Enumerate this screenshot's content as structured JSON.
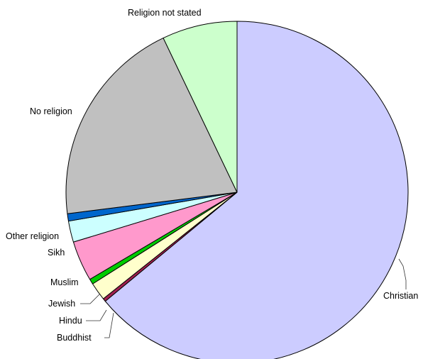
{
  "chart_data": {
    "type": "pie",
    "title": "",
    "unit": "percent",
    "slices": [
      {
        "label": "Christian",
        "value": 64.0,
        "color": "#ccccff"
      },
      {
        "label": "Buddhist",
        "value": 0.3,
        "color": "#a0204f"
      },
      {
        "label": "Hindu",
        "value": 1.7,
        "color": "#ffffcc"
      },
      {
        "label": "Jewish",
        "value": 0.5,
        "color": "#00cc00"
      },
      {
        "label": "Muslim",
        "value": 3.8,
        "color": "#ff99cc"
      },
      {
        "label": "Sikh",
        "value": 2.0,
        "color": "#ccffff"
      },
      {
        "label": "Other religion",
        "value": 0.7,
        "color": "#0066cc"
      },
      {
        "label": "No religion",
        "value": 19.9,
        "color": "#c0c0c0"
      },
      {
        "label": "Religion not stated",
        "value": 7.1,
        "color": "#ccffcc"
      }
    ]
  }
}
